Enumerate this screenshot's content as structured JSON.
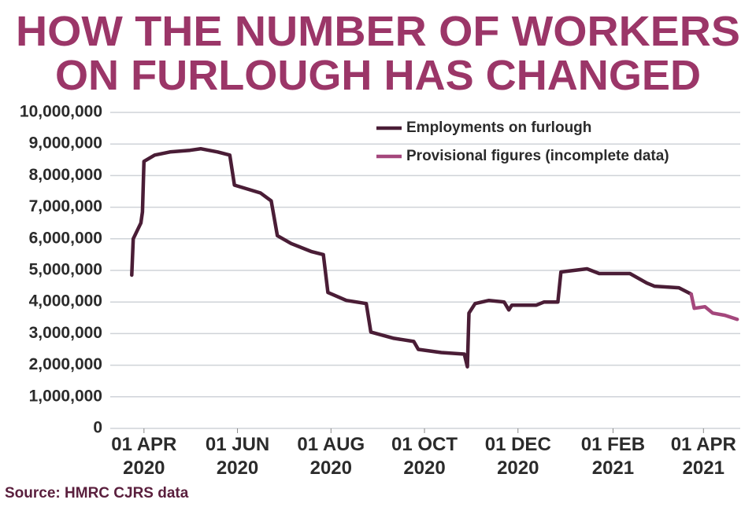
{
  "chart_data": {
    "type": "line",
    "title": [
      "HOW THE NUMBER OF WORKERS",
      "ON FURLOUGH HAS CHANGED"
    ],
    "source": "Source: HMRC CJRS data",
    "xlim": [
      "2020-03-10",
      "2021-04-25"
    ],
    "xticks": [
      {
        "value": "2020-04-01",
        "label": [
          "01 APR",
          "2020"
        ]
      },
      {
        "value": "2020-06-01",
        "label": [
          "01 JUN",
          "2020"
        ]
      },
      {
        "value": "2020-08-01",
        "label": [
          "01 AUG",
          "2020"
        ]
      },
      {
        "value": "2020-10-01",
        "label": [
          "01 OCT",
          "2020"
        ]
      },
      {
        "value": "2020-12-01",
        "label": [
          "01 DEC",
          "2020"
        ]
      },
      {
        "value": "2021-02-01",
        "label": [
          "01 FEB",
          "2021"
        ]
      },
      {
        "value": "2021-04-01",
        "label": [
          "01 APR",
          "2021"
        ]
      }
    ],
    "ylim": [
      0,
      10000000
    ],
    "yticks": [
      0,
      {
        "value": 1000000,
        "label": "1,000,000"
      },
      {
        "value": 2000000,
        "label": "2,000,000"
      },
      {
        "value": 3000000,
        "label": "3,000,000"
      },
      {
        "value": 4000000,
        "label": "4,000,000"
      },
      {
        "value": 5000000,
        "label": "5,000,000"
      },
      {
        "value": 6000000,
        "label": "6,000,000"
      },
      {
        "value": 7000000,
        "label": "7,000,000"
      },
      {
        "value": 8000000,
        "label": "8,000,000"
      },
      {
        "value": 9000000,
        "label": "9,000,000"
      },
      {
        "value": 10000000,
        "label": "10,000,000"
      }
    ],
    "grid": true,
    "legend": "top right",
    "series": [
      {
        "name": "Employments on furlough",
        "color": "#4a1d36",
        "x": [
          "2020-03-24",
          "2020-03-25",
          "2020-03-30",
          "2020-03-31",
          "2020-04-01",
          "2020-04-08",
          "2020-04-18",
          "2020-05-01",
          "2020-05-08",
          "2020-05-19",
          "2020-05-27",
          "2020-05-30",
          "2020-06-16",
          "2020-06-23",
          "2020-06-27",
          "2020-07-06",
          "2020-07-19",
          "2020-07-27",
          "2020-07-30",
          "2020-08-11",
          "2020-08-24",
          "2020-08-27",
          "2020-09-11",
          "2020-09-24",
          "2020-09-27",
          "2020-10-12",
          "2020-10-27",
          "2020-10-29",
          "2020-10-30",
          "2020-11-03",
          "2020-11-12",
          "2020-11-22",
          "2020-11-25",
          "2020-11-27",
          "2020-12-13",
          "2020-12-18",
          "2020-12-27",
          "2020-12-29",
          "2021-01-15",
          "2021-01-23",
          "2021-02-12",
          "2021-02-23",
          "2021-02-28",
          "2021-03-16",
          "2021-03-24"
        ],
        "values": [
          4850000,
          6000000,
          6500000,
          6850000,
          8450000,
          8650000,
          8750000,
          8800000,
          8850000,
          8750000,
          8650000,
          7700000,
          7450000,
          7200000,
          6100000,
          5850000,
          5600000,
          5500000,
          4300000,
          4050000,
          3950000,
          3050000,
          2850000,
          2750000,
          2500000,
          2400000,
          2350000,
          1950000,
          3650000,
          3950000,
          4050000,
          4000000,
          3750000,
          3900000,
          3900000,
          4000000,
          4000000,
          4950000,
          5050000,
          4900000,
          4900000,
          4600000,
          4500000,
          4450000,
          4250000
        ]
      },
      {
        "name": "Provisional figures (incomplete data)",
        "color": "#a4477c",
        "x": [
          "2021-03-24",
          "2021-03-26",
          "2021-04-02",
          "2021-04-07",
          "2021-04-15",
          "2021-04-23"
        ],
        "values": [
          4250000,
          3800000,
          3850000,
          3650000,
          3580000,
          3450000
        ]
      }
    ]
  }
}
